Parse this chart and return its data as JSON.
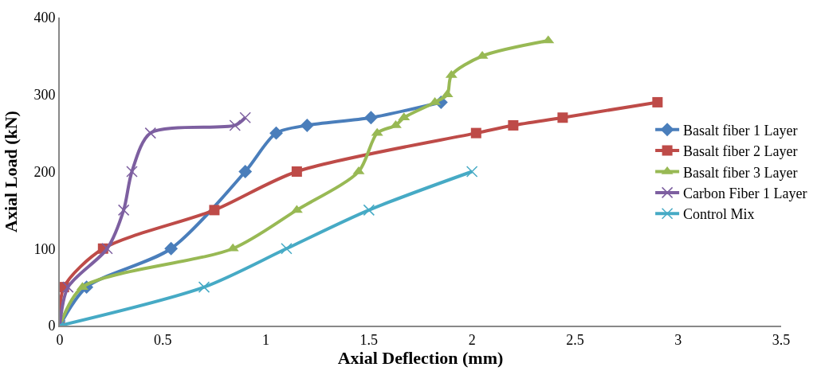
{
  "chart_data": {
    "type": "line",
    "xlabel": "Axial Deflection (mm)",
    "ylabel": "Axial Load (kN)",
    "xlim": [
      0,
      3.5
    ],
    "xticks": [
      0,
      0.5,
      1,
      1.5,
      2,
      2.5,
      3,
      3.5
    ],
    "ylim": [
      0,
      400
    ],
    "yticks": [
      0,
      100,
      200,
      300,
      400
    ],
    "legend": "right",
    "line_style": "solid",
    "series": [
      {
        "name": "Basalt fiber 1 Layer",
        "color": "#4a7ebb",
        "marker": "diamond",
        "x": [
          0,
          0.13,
          0.54,
          0.9,
          1.05,
          1.2,
          1.51,
          1.85
        ],
        "values": [
          0,
          50,
          100,
          200,
          250,
          260,
          270,
          290
        ]
      },
      {
        "name": "Basalt fiber 2 Layer",
        "color": "#be4b48",
        "marker": "square",
        "x": [
          0,
          0.02,
          0.21,
          0.75,
          1.15,
          2.02,
          2.2,
          2.44,
          2.9
        ],
        "values": [
          0,
          50,
          100,
          150,
          200,
          250,
          260,
          270,
          290
        ]
      },
      {
        "name": "Basalt fiber 3 Layer",
        "color": "#98b954",
        "marker": "triangle",
        "x": [
          0,
          0.11,
          0.84,
          1.15,
          1.45,
          1.54,
          1.63,
          1.67,
          1.82,
          1.88,
          1.9,
          2.05,
          2.37
        ],
        "values": [
          0,
          50,
          100,
          150,
          200,
          250,
          260,
          270,
          290,
          300,
          325,
          350,
          370
        ]
      },
      {
        "name": "Carbon Fiber 1 Layer",
        "color": "#7d5fa0",
        "marker": "cross",
        "x": [
          0,
          0.04,
          0.23,
          0.31,
          0.35,
          0.44,
          0.85,
          0.9
        ],
        "values": [
          0,
          50,
          100,
          150,
          200,
          250,
          260,
          270
        ]
      },
      {
        "name": "Control Mix",
        "color": "#46aac5",
        "marker": "cross",
        "x": [
          0,
          0.7,
          1.1,
          1.5,
          2.0
        ],
        "values": [
          0,
          50,
          100,
          150,
          200
        ]
      }
    ]
  }
}
